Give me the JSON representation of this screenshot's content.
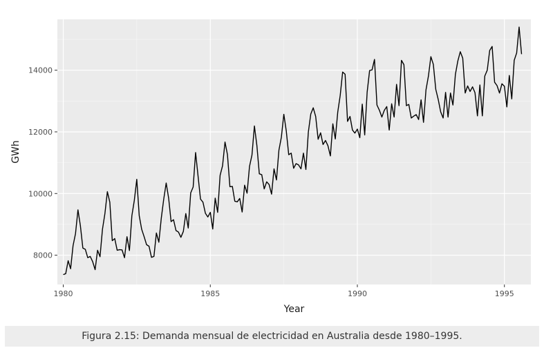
{
  "chart_data": {
    "type": "line",
    "title": "",
    "xlabel": "Year",
    "ylabel": "GWh",
    "xlim": [
      1979.8,
      1995.9
    ],
    "ylim": [
      7050,
      15650
    ],
    "x_ticks": [
      1980,
      1985,
      1990,
      1995
    ],
    "y_ticks": [
      8000,
      10000,
      12000,
      14000
    ],
    "grid": true,
    "legend": "none",
    "start": "1980-01",
    "frequency": "monthly",
    "series": [
      {
        "values": [
          7370,
          7400,
          7820,
          7560,
          8310,
          8700,
          9470,
          8950,
          8230,
          8190,
          7920,
          7960,
          7790,
          7530,
          8160,
          7950,
          8840,
          9350,
          10060,
          9720,
          8470,
          8540,
          8160,
          8180,
          8170,
          7920,
          8600,
          8150,
          9280,
          9780,
          10460,
          9280,
          8840,
          8600,
          8340,
          8290,
          7930,
          7960,
          8720,
          8420,
          9200,
          9820,
          10340,
          9850,
          9090,
          9150,
          8800,
          8750,
          8580,
          8770,
          9350,
          8880,
          10020,
          10210,
          11330,
          10570,
          9820,
          9720,
          9360,
          9240,
          9390,
          8850,
          9850,
          9390,
          10590,
          10900,
          11670,
          11260,
          10220,
          10230,
          9750,
          9730,
          9840,
          9400,
          10270,
          10010,
          10880,
          11250,
          12190,
          11560,
          10640,
          10610,
          10150,
          10380,
          10290,
          9980,
          10800,
          10440,
          11410,
          11830,
          12570,
          12030,
          11260,
          11310,
          10820,
          10970,
          10930,
          10800,
          11310,
          10780,
          11990,
          12580,
          12780,
          12500,
          11760,
          11970,
          11590,
          11720,
          11550,
          11220,
          12260,
          11770,
          12640,
          13180,
          13940,
          13870,
          12340,
          12500,
          12060,
          11960,
          12090,
          11810,
          12900,
          11900,
          13290,
          13990,
          14010,
          14350,
          12870,
          12700,
          12480,
          12700,
          12820,
          12060,
          12910,
          12480,
          13540,
          12850,
          14320,
          14180,
          12850,
          12890,
          12450,
          12510,
          12560,
          12400,
          13040,
          12310,
          13360,
          13810,
          14440,
          14190,
          13380,
          13050,
          12650,
          12450,
          13280,
          12480,
          13260,
          12870,
          13860,
          14300,
          14600,
          14390,
          13260,
          13490,
          13310,
          13460,
          13270,
          12520,
          13520,
          12520,
          13810,
          14000,
          14640,
          14770,
          13610,
          13500,
          13260,
          13560,
          13480,
          12810,
          13830,
          13070,
          14320,
          14560,
          15400,
          14520
        ]
      }
    ]
  },
  "caption": "Figura 2.15: Demanda mensual de electricidad en Australia desde 1980–1995.",
  "colors": {
    "panel": "#ebebeb",
    "grid_major": "#ffffff",
    "line": "#000000",
    "caption_bg": "#ededed"
  }
}
